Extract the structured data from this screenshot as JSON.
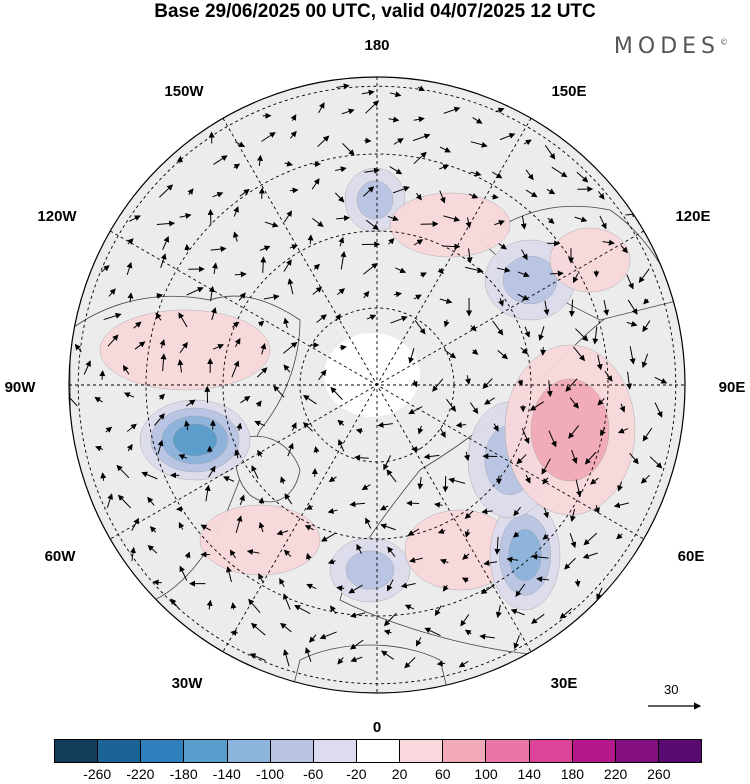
{
  "title": "Base 29/06/2025 00 UTC, valid 04/07/2025 12 UTC",
  "brand": "MODES",
  "brand_mark": "©",
  "longitude_labels": {
    "lon_180": "180",
    "lon_150w": "150W",
    "lon_150e": "150E",
    "lon_120w": "120W",
    "lon_120e": "120E",
    "lon_90w": "90W",
    "lon_90e": "90E",
    "lon_60w": "60W",
    "lon_60e": "60E",
    "lon_30w": "30W",
    "lon_30e": "30E",
    "lon_0": "0"
  },
  "reference_vector": {
    "label": "30"
  },
  "colorbar": {
    "labels": [
      "-260",
      "-220",
      "-180",
      "-140",
      "-100",
      "-60",
      "-20",
      "20",
      "60",
      "100",
      "140",
      "180",
      "220",
      "260"
    ],
    "colors": [
      "#123c5a",
      "#1d6496",
      "#2f80bc",
      "#5a9ccc",
      "#8cb4dc",
      "#b8c4e2",
      "#dcdcee",
      "#ffffff",
      "#f8d8dc",
      "#f2aab8",
      "#ea76a8",
      "#dc449a",
      "#b4188a",
      "#841080",
      "#580a6e"
    ]
  },
  "anomaly_blobs": [
    {
      "id": "alaska-north",
      "sign": "negative",
      "level": 2
    },
    {
      "id": "east-siberia",
      "sign": "positive",
      "level": 1
    },
    {
      "id": "canada-west",
      "sign": "positive",
      "level": 1
    },
    {
      "id": "hudson-bay",
      "sign": "negative",
      "level": 4
    },
    {
      "id": "north-atlantic",
      "sign": "positive",
      "level": 1
    },
    {
      "id": "western-europe",
      "sign": "negative",
      "level": 2
    },
    {
      "id": "central-europe",
      "sign": "positive",
      "level": 1
    },
    {
      "id": "black-sea",
      "sign": "negative",
      "level": 3
    },
    {
      "id": "ural",
      "sign": "negative",
      "level": 2
    },
    {
      "id": "west-siberia",
      "sign": "positive",
      "level": 2
    },
    {
      "id": "central-siberia",
      "sign": "negative",
      "level": 2
    },
    {
      "id": "yakutia",
      "sign": "positive",
      "level": 1
    }
  ]
}
